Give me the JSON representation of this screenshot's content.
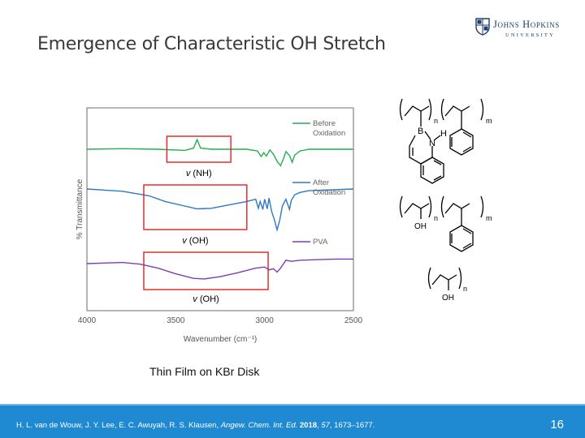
{
  "slide": {
    "title": "Emergence of Characteristic OH Stretch",
    "caption": "Thin Film on KBr Disk",
    "page_number": "16",
    "citation": {
      "authors": "H. L. van de Wouw, J. Y. Lee, E. C. Awuyah, R. S. Klausen, ",
      "journal": "Angew. Chem. Int. Ed.",
      "year": "2018",
      "volume": "57",
      "pages": ", 1673–1677."
    }
  },
  "logo": {
    "line1": "Johns Hopkins",
    "line2": "UNIVERSITY"
  },
  "colors": {
    "before": "#21b04b",
    "after": "#2e78be",
    "pva": "#7b3fb5",
    "box": "#e02020",
    "footer": "#1f8ad2"
  },
  "chart_data": {
    "type": "line",
    "title": "",
    "xlabel": "Wavenumber (cm⁻¹)",
    "ylabel": "% Transmittance",
    "xlim": [
      4000,
      2500
    ],
    "x_reversed": true,
    "x_ticks": [
      4000,
      3500,
      3000,
      2500
    ],
    "grid": false,
    "series": [
      {
        "name": "Before Oxidation",
        "offset": 0,
        "points": [
          [
            4000,
            0.0
          ],
          [
            3800,
            0.1
          ],
          [
            3600,
            0.0
          ],
          [
            3450,
            -0.2
          ],
          [
            3400,
            0.2
          ],
          [
            3380,
            1.7
          ],
          [
            3360,
            0.2
          ],
          [
            3300,
            0.0
          ],
          [
            3100,
            0.0
          ],
          [
            3040,
            -0.3
          ],
          [
            3020,
            -1.3
          ],
          [
            3005,
            -0.6
          ],
          [
            2990,
            -1.2
          ],
          [
            2970,
            -0.1
          ],
          [
            2950,
            -0.9
          ],
          [
            2930,
            -2.1
          ],
          [
            2910,
            -2.9
          ],
          [
            2895,
            -1.8
          ],
          [
            2880,
            -0.4
          ],
          [
            2860,
            -1.1
          ],
          [
            2845,
            -2.3
          ],
          [
            2830,
            -1.0
          ],
          [
            2800,
            -0.3
          ],
          [
            2750,
            0.0
          ],
          [
            2500,
            0.0
          ]
        ]
      },
      {
        "name": "After Oxidation",
        "offset": 0,
        "points": [
          [
            4000,
            0.0
          ],
          [
            3800,
            -0.4
          ],
          [
            3650,
            -1.2
          ],
          [
            3560,
            -2.2
          ],
          [
            3450,
            -3.0
          ],
          [
            3380,
            -3.5
          ],
          [
            3300,
            -3.4
          ],
          [
            3200,
            -2.8
          ],
          [
            3100,
            -2.2
          ],
          [
            3050,
            -1.8
          ],
          [
            3035,
            -3.4
          ],
          [
            3025,
            -2.2
          ],
          [
            3010,
            -3.6
          ],
          [
            3000,
            -1.8
          ],
          [
            2985,
            -3.5
          ],
          [
            2975,
            -1.6
          ],
          [
            2960,
            -4.0
          ],
          [
            2945,
            -5.4
          ],
          [
            2930,
            -7.2
          ],
          [
            2915,
            -5.5
          ],
          [
            2900,
            -3.0
          ],
          [
            2880,
            -1.8
          ],
          [
            2860,
            -3.6
          ],
          [
            2850,
            -2.0
          ],
          [
            2830,
            -1.0
          ],
          [
            2800,
            -0.6
          ],
          [
            2750,
            -0.3
          ],
          [
            2500,
            0.0
          ]
        ]
      },
      {
        "name": "PVA",
        "offset": 0,
        "points": [
          [
            4000,
            0.0
          ],
          [
            3800,
            0.2
          ],
          [
            3700,
            -0.1
          ],
          [
            3600,
            -0.8
          ],
          [
            3500,
            -1.8
          ],
          [
            3400,
            -2.6
          ],
          [
            3340,
            -2.7
          ],
          [
            3250,
            -2.3
          ],
          [
            3150,
            -1.6
          ],
          [
            3050,
            -0.8
          ],
          [
            3000,
            -0.6
          ],
          [
            2975,
            -1.1
          ],
          [
            2950,
            -0.9
          ],
          [
            2930,
            -1.5
          ],
          [
            2910,
            -0.8
          ],
          [
            2880,
            0.6
          ],
          [
            2850,
            0.4
          ],
          [
            2800,
            0.6
          ],
          [
            2700,
            0.7
          ],
          [
            2600,
            0.8
          ],
          [
            2500,
            0.8
          ]
        ]
      }
    ],
    "annotations": [
      {
        "label_prefix": "v",
        "label_text": " (NH)",
        "x_range": [
          3550,
          3190
        ]
      },
      {
        "label_prefix": "v",
        "label_text": " (OH)",
        "x_range": [
          3680,
          3100
        ]
      },
      {
        "label_prefix": "v",
        "label_text": " (OH)",
        "x_range": [
          3680,
          2980
        ]
      }
    ]
  },
  "structures": {
    "n1": "n",
    "m1": "m",
    "B": "B",
    "N": "N",
    "H": "H",
    "n2": "n",
    "m2": "m",
    "OH1": "OH",
    "n3": "n",
    "OH2": "OH"
  }
}
